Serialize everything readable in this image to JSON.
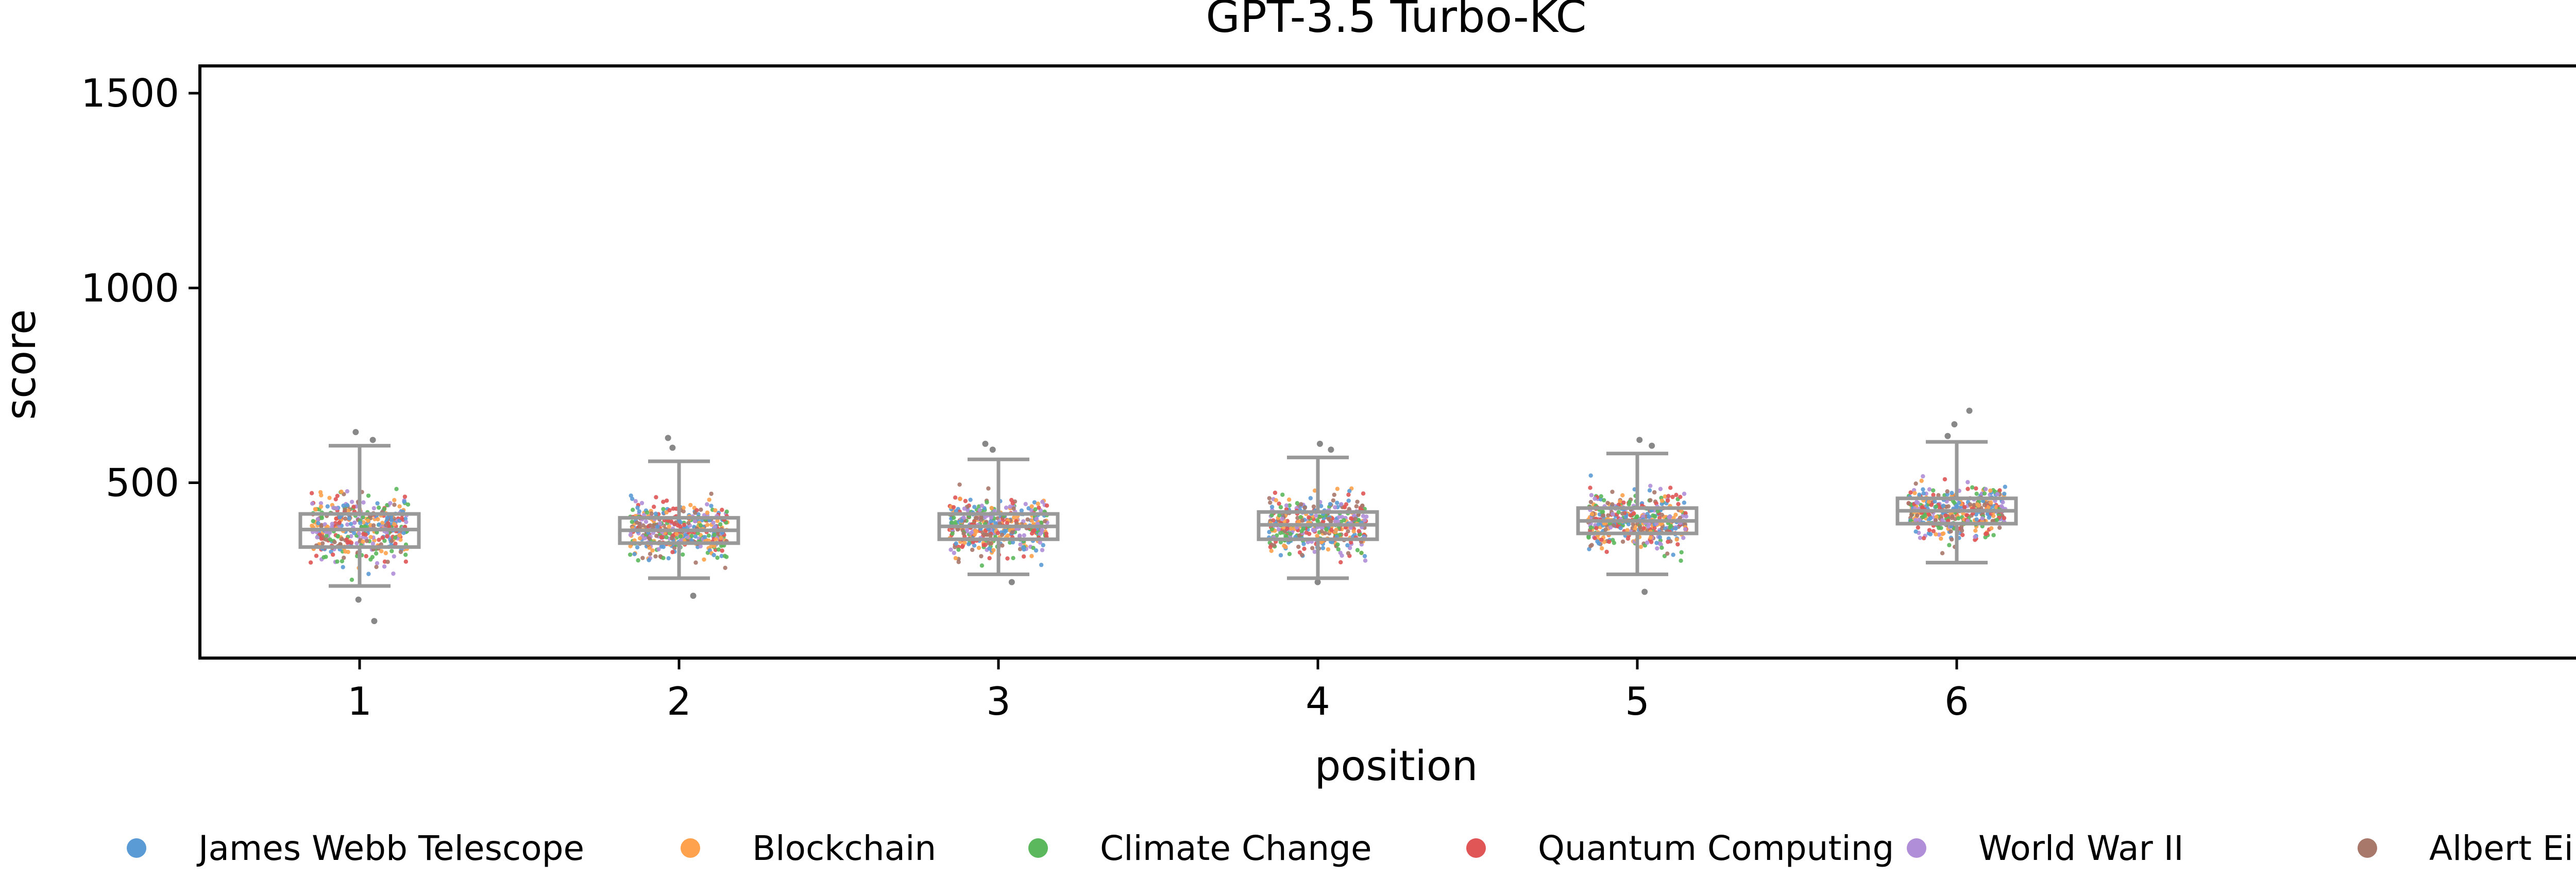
{
  "chart_data": {
    "type": "scatter",
    "title": "GPT-3.5 Turbo-KC",
    "xlabel": "position",
    "ylabel": "score",
    "categories": [
      "1",
      "2",
      "3",
      "4",
      "5",
      "6"
    ],
    "ylim": [
      50,
      1570
    ],
    "yticks": [
      500,
      1000,
      1500
    ],
    "grid": false,
    "legend_position": "bottom",
    "box_color": "#999999",
    "series": [
      {
        "name": "James Webb Telescope",
        "color": "#5b9bd5"
      },
      {
        "name": "Blockchain",
        "color": "#ffa24d"
      },
      {
        "name": "Climate Change",
        "color": "#5cb85c"
      },
      {
        "name": "Quantum Computing",
        "color": "#e05555"
      },
      {
        "name": "World War II",
        "color": "#b08fd8"
      },
      {
        "name": "Albert Einstein",
        "color": "#a8786a"
      }
    ],
    "boxplots": [
      {
        "position": "1",
        "whisker_low": 235,
        "q1": 335,
        "median": 380,
        "q3": 420,
        "whisker_high": 595,
        "outliers": [
          145,
          200,
          610,
          630
        ]
      },
      {
        "position": "2",
        "whisker_low": 255,
        "q1": 345,
        "median": 378,
        "q3": 410,
        "whisker_high": 555,
        "outliers": [
          210,
          590,
          615
        ]
      },
      {
        "position": "3",
        "whisker_low": 265,
        "q1": 355,
        "median": 388,
        "q3": 420,
        "whisker_high": 560,
        "outliers": [
          245,
          585,
          600
        ]
      },
      {
        "position": "4",
        "whisker_low": 255,
        "q1": 355,
        "median": 392,
        "q3": 425,
        "whisker_high": 565,
        "outliers": [
          245,
          585,
          600
        ]
      },
      {
        "position": "5",
        "whisker_low": 265,
        "q1": 370,
        "median": 402,
        "q3": 435,
        "whisker_high": 575,
        "outliers": [
          220,
          595,
          610
        ]
      },
      {
        "position": "6",
        "whisker_low": 295,
        "q1": 395,
        "median": 428,
        "q3": 460,
        "whisker_high": 605,
        "outliers": [
          620,
          650,
          685
        ]
      }
    ]
  }
}
